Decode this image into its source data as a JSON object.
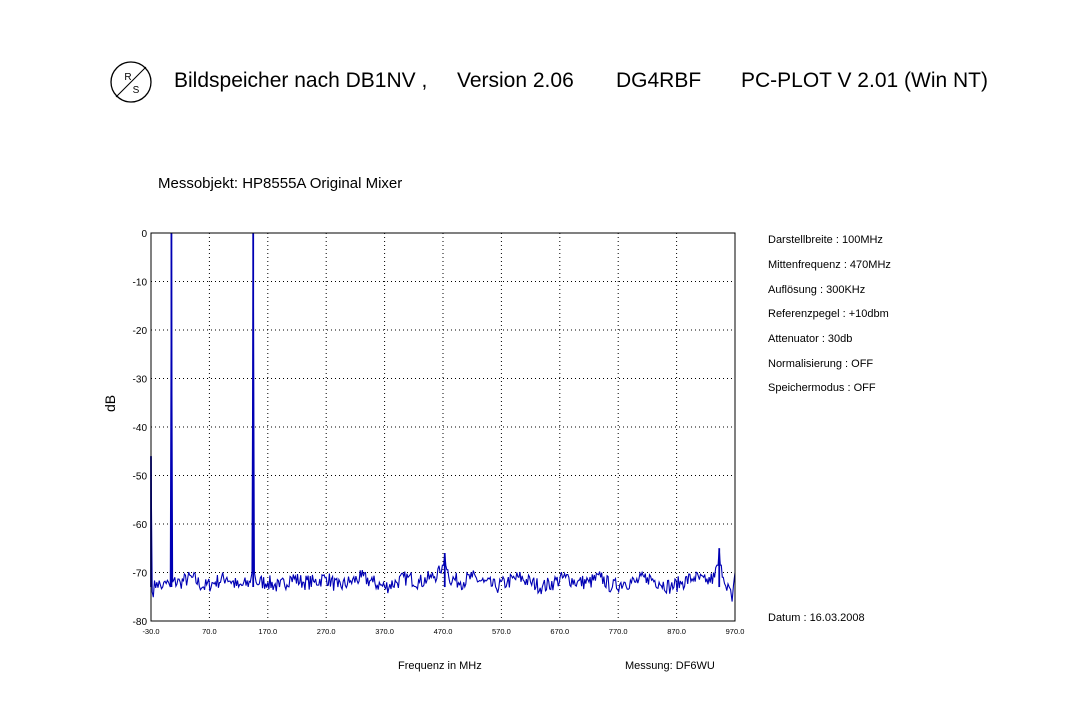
{
  "header": {
    "software": "Bildspeicher nach DB1NV ,",
    "version": "Version 2.06",
    "author": "DG4RBF",
    "plot": "PC-PLOT  V 2.01  (Win NT)"
  },
  "logo": {
    "icon": "rohde-schwarz-logo",
    "text": "R&S"
  },
  "subtitle": "Messobjekt: HP8555A Original Mixer",
  "info": [
    "Darstellbreite : 100MHz",
    "Mittenfrequenz  : 470MHz",
    "Auflösung  :   300KHz",
    "Referenzpegel : +10dbm",
    "Attenuator : 30db",
    "Normalisierung : OFF",
    "Speichermodus : OFF"
  ],
  "datum": "Datum :  16.03.2008",
  "messung": "Messung:  DF6WU",
  "colors": {
    "trace": "#0000b4",
    "grid": "#000000"
  },
  "chart_data": {
    "type": "line",
    "title": "Messobjekt: HP8555A Original Mixer",
    "xlabel": "Frequenz in MHz",
    "ylabel": "dB",
    "xlim": [
      -30,
      970
    ],
    "ylim": [
      -80,
      0
    ],
    "x_ticks": [
      "-30.0",
      "70.0",
      "170.0",
      "270.0",
      "370.0",
      "470.0",
      "570.0",
      "670.0",
      "770.0",
      "870.0",
      "970.0"
    ],
    "y_ticks": [
      "0",
      "-10",
      "-20",
      "-30",
      "-40",
      "-50",
      "-60",
      "-70",
      "-80"
    ],
    "grid": true,
    "noise_floor_db": -72,
    "series": [
      {
        "peaks": [
          {
            "x": -30,
            "y": -46
          },
          {
            "x": 5,
            "y": 0
          },
          {
            "x": 145,
            "y": 0
          },
          {
            "x": 473,
            "y": -66
          },
          {
            "x": 943,
            "y": -65
          }
        ],
        "points": [
          [
            -30,
            -46
          ],
          [
            -28,
            -74
          ],
          [
            -20,
            -72
          ],
          [
            -10,
            -73
          ],
          [
            0,
            -72
          ],
          [
            3,
            -73
          ],
          [
            5,
            0
          ],
          [
            7,
            -72
          ],
          [
            20,
            -72
          ],
          [
            40,
            -71
          ],
          [
            60,
            -73
          ],
          [
            80,
            -72
          ],
          [
            100,
            -71
          ],
          [
            120,
            -73
          ],
          [
            140,
            -72
          ],
          [
            143,
            -70
          ],
          [
            145,
            0
          ],
          [
            147,
            -70
          ],
          [
            150,
            -72
          ],
          [
            170,
            -72
          ],
          [
            190,
            -73
          ],
          [
            210,
            -71
          ],
          [
            230,
            -72
          ],
          [
            250,
            -72
          ],
          [
            270,
            -71
          ],
          [
            290,
            -73
          ],
          [
            310,
            -72
          ],
          [
            330,
            -71
          ],
          [
            350,
            -72
          ],
          [
            370,
            -73
          ],
          [
            390,
            -72
          ],
          [
            410,
            -71
          ],
          [
            430,
            -72
          ],
          [
            450,
            -71
          ],
          [
            465,
            -70
          ],
          [
            473,
            -66
          ],
          [
            480,
            -71
          ],
          [
            500,
            -72
          ],
          [
            520,
            -71
          ],
          [
            540,
            -72
          ],
          [
            560,
            -73
          ],
          [
            580,
            -72
          ],
          [
            600,
            -71
          ],
          [
            620,
            -72
          ],
          [
            640,
            -73
          ],
          [
            660,
            -72
          ],
          [
            680,
            -71
          ],
          [
            700,
            -72
          ],
          [
            720,
            -72
          ],
          [
            740,
            -71
          ],
          [
            760,
            -73
          ],
          [
            780,
            -72
          ],
          [
            800,
            -72
          ],
          [
            820,
            -71
          ],
          [
            840,
            -72
          ],
          [
            860,
            -73
          ],
          [
            880,
            -72
          ],
          [
            900,
            -71
          ],
          [
            920,
            -72
          ],
          [
            935,
            -71
          ],
          [
            943,
            -65
          ],
          [
            950,
            -71
          ],
          [
            960,
            -73
          ],
          [
            965,
            -76
          ],
          [
            970,
            -70
          ]
        ]
      }
    ]
  }
}
